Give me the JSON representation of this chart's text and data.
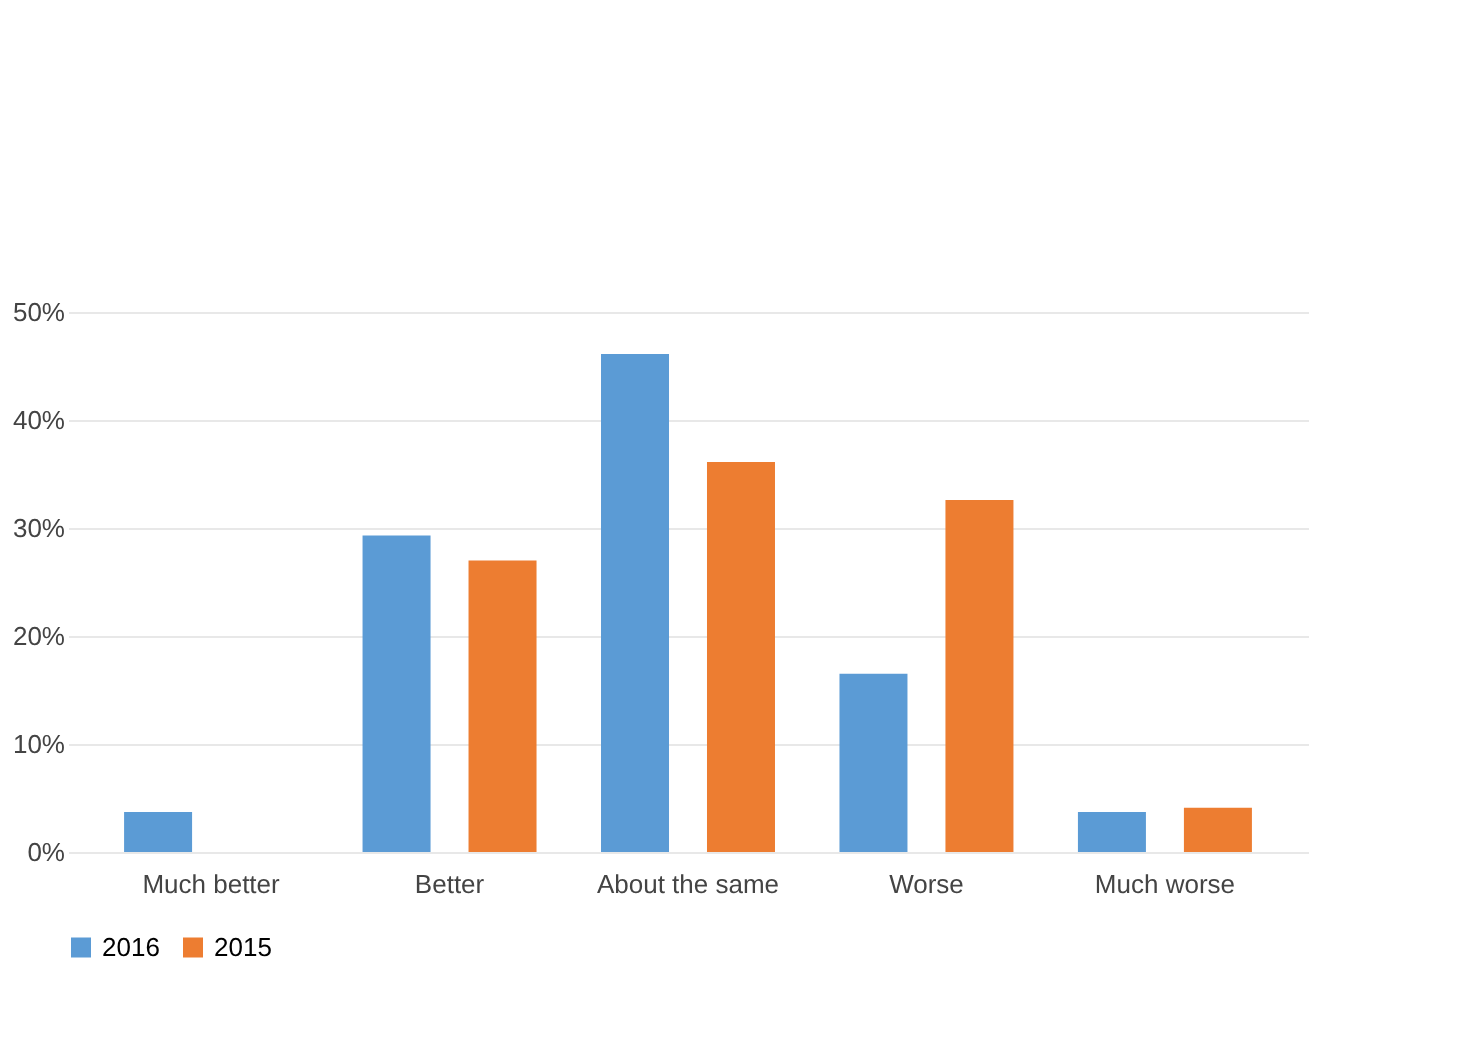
{
  "chart_data": {
    "type": "bar",
    "categories": [
      "Much better",
      "Better",
      "About the same",
      "Worse",
      "Much worse"
    ],
    "series": [
      {
        "name": "2016",
        "color": "#5b9bd5",
        "values": [
          3.7,
          29.3,
          46.1,
          16.5,
          3.7
        ]
      },
      {
        "name": "2015",
        "color": "#ed7d31",
        "values": [
          0,
          27,
          36.1,
          32.6,
          4.1
        ]
      }
    ],
    "ylim": [
      0,
      50
    ],
    "yticks": [
      {
        "value": 0,
        "label": "0%"
      },
      {
        "value": 10,
        "label": "10%"
      },
      {
        "value": 20,
        "label": "20%"
      },
      {
        "value": 30,
        "label": "30%"
      },
      {
        "value": 40,
        "label": "40%"
      },
      {
        "value": 50,
        "label": "50%"
      }
    ],
    "grid": "y",
    "legend": "bottom"
  }
}
